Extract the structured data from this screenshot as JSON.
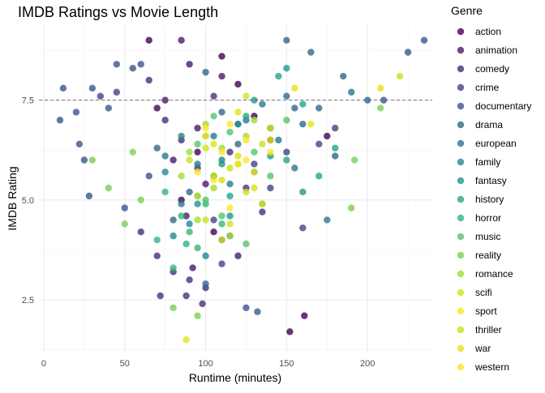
{
  "chart_data": {
    "type": "scatter",
    "title": "IMDB Ratings vs Movie Length",
    "xlabel": "Runtime (minutes)",
    "ylabel": "IMDB Rating",
    "xlim": [
      -3,
      240
    ],
    "ylim": [
      1.2,
      9.4
    ],
    "x_ticks": [
      0,
      50,
      100,
      150,
      200
    ],
    "y_ticks": [
      2.5,
      5.0,
      7.5
    ],
    "y_tick_labels": [
      "2.5",
      "5.0",
      "7.5"
    ],
    "reference_line": {
      "y": 7.5,
      "style": "dashed"
    },
    "legend": {
      "title": "Genre",
      "placement": "right",
      "items": [
        {
          "name": "action",
          "color": "#440154"
        },
        {
          "name": "animation",
          "color": "#481a6c"
        },
        {
          "name": "comedy",
          "color": "#472f7d"
        },
        {
          "name": "crime",
          "color": "#414487"
        },
        {
          "name": "documentary",
          "color": "#39568c"
        },
        {
          "name": "drama",
          "color": "#31688e"
        },
        {
          "name": "european",
          "color": "#2a788e"
        },
        {
          "name": "family",
          "color": "#23888e"
        },
        {
          "name": "fantasy",
          "color": "#1f988b"
        },
        {
          "name": "history",
          "color": "#22a884"
        },
        {
          "name": "horror",
          "color": "#35b779"
        },
        {
          "name": "music",
          "color": "#54c568"
        },
        {
          "name": "reality",
          "color": "#7ad151"
        },
        {
          "name": "romance",
          "color": "#a5db36"
        },
        {
          "name": "scifi",
          "color": "#d2e21b"
        },
        {
          "name": "sport",
          "color": "#fde725"
        },
        {
          "name": "thriller",
          "color": "#c9e020"
        },
        {
          "name": "war",
          "color": "#e3e418"
        },
        {
          "name": "western",
          "color": "#fde725"
        }
      ]
    },
    "series": [
      {
        "name": "action",
        "points": [
          [
            65,
            9.0
          ],
          [
            110,
            8.6
          ],
          [
            152,
            1.7
          ],
          [
            161,
            2.1
          ],
          [
            120,
            7.9
          ],
          [
            140,
            6.5
          ],
          [
            95,
            6.2
          ],
          [
            130,
            7.1
          ],
          [
            85,
            5.0
          ],
          [
            175,
            6.6
          ],
          [
            105,
            4.2
          ],
          [
            70,
            7.3
          ]
        ]
      },
      {
        "name": "animation",
        "points": [
          [
            85,
            9.0
          ],
          [
            90,
            8.4
          ],
          [
            110,
            8.1
          ],
          [
            75,
            7.5
          ],
          [
            95,
            6.8
          ],
          [
            80,
            6.0
          ],
          [
            100,
            5.4
          ],
          [
            88,
            4.6
          ],
          [
            120,
            3.6
          ],
          [
            92,
            3.3
          ]
        ]
      },
      {
        "name": "comedy",
        "points": [
          [
            60,
            4.2
          ],
          [
            70,
            3.6
          ],
          [
            80,
            3.2
          ],
          [
            90,
            3.0
          ],
          [
            100,
            2.8
          ],
          [
            110,
            4.0
          ],
          [
            95,
            5.8
          ],
          [
            85,
            6.5
          ],
          [
            75,
            7.0
          ],
          [
            105,
            7.6
          ],
          [
            115,
            6.2
          ],
          [
            125,
            5.3
          ],
          [
            135,
            4.7
          ],
          [
            65,
            8.0
          ],
          [
            88,
            2.6
          ],
          [
            98,
            2.4
          ],
          [
            72,
            2.6
          ]
        ]
      },
      {
        "name": "crime",
        "points": [
          [
            45,
            7.7
          ],
          [
            35,
            7.6
          ],
          [
            120,
            6.9
          ],
          [
            130,
            5.9
          ],
          [
            140,
            5.3
          ],
          [
            150,
            6.2
          ],
          [
            105,
            4.5
          ],
          [
            110,
            3.4
          ],
          [
            160,
            4.3
          ],
          [
            170,
            6.4
          ],
          [
            180,
            6.8
          ]
        ]
      },
      {
        "name": "documentary",
        "points": [
          [
            10,
            7.0
          ],
          [
            12,
            7.8
          ],
          [
            20,
            7.2
          ],
          [
            25,
            6.0
          ],
          [
            30,
            7.8
          ],
          [
            45,
            8.4
          ],
          [
            55,
            8.3
          ],
          [
            60,
            8.4
          ],
          [
            125,
            2.3
          ],
          [
            132,
            2.2
          ],
          [
            225,
            8.7
          ],
          [
            210,
            7.5
          ],
          [
            235,
            9.0
          ],
          [
            28,
            5.1
          ],
          [
            22,
            6.4
          ],
          [
            40,
            7.3
          ],
          [
            50,
            4.8
          ],
          [
            65,
            5.6
          ]
        ]
      },
      {
        "name": "drama",
        "points": [
          [
            100,
            8.2
          ],
          [
            110,
            7.2
          ],
          [
            120,
            6.4
          ],
          [
            130,
            5.7
          ],
          [
            140,
            6.8
          ],
          [
            150,
            7.6
          ],
          [
            160,
            6.9
          ],
          [
            170,
            7.3
          ],
          [
            180,
            6.1
          ],
          [
            90,
            5.2
          ],
          [
            80,
            4.5
          ],
          [
            70,
            6.3
          ],
          [
            200,
            7.5
          ],
          [
            150,
            9.0
          ],
          [
            115,
            4.1
          ],
          [
            100,
            2.9
          ],
          [
            155,
            7.3
          ],
          [
            165,
            8.7
          ],
          [
            185,
            8.1
          ]
        ]
      },
      {
        "name": "european",
        "points": [
          [
            75,
            6.1
          ],
          [
            95,
            5.9
          ],
          [
            105,
            6.6
          ],
          [
            125,
            7.0
          ],
          [
            135,
            7.4
          ],
          [
            145,
            6.5
          ],
          [
            155,
            5.8
          ],
          [
            115,
            5.4
          ],
          [
            85,
            4.9
          ],
          [
            175,
            4.5
          ],
          [
            190,
            7.7
          ]
        ]
      },
      {
        "name": "family",
        "points": [
          [
            85,
            6.6
          ],
          [
            95,
            5.1
          ],
          [
            105,
            5.6
          ],
          [
            80,
            4.1
          ],
          [
            100,
            3.6
          ],
          [
            90,
            4.4
          ],
          [
            110,
            6.0
          ],
          [
            75,
            5.7
          ]
        ]
      },
      {
        "name": "fantasy",
        "points": [
          [
            100,
            6.6
          ],
          [
            110,
            5.9
          ],
          [
            120,
            6.9
          ],
          [
            130,
            7.5
          ],
          [
            95,
            4.9
          ],
          [
            115,
            4.6
          ],
          [
            140,
            6.1
          ],
          [
            150,
            8.3
          ],
          [
            160,
            5.2
          ]
        ]
      },
      {
        "name": "history",
        "points": [
          [
            125,
            7.1
          ],
          [
            140,
            6.8
          ],
          [
            150,
            6.0
          ],
          [
            160,
            7.4
          ],
          [
            170,
            5.6
          ],
          [
            180,
            6.3
          ],
          [
            115,
            5.1
          ],
          [
            135,
            4.9
          ],
          [
            145,
            8.1
          ]
        ]
      },
      {
        "name": "horror",
        "points": [
          [
            75,
            5.2
          ],
          [
            85,
            4.6
          ],
          [
            90,
            4.2
          ],
          [
            95,
            3.8
          ],
          [
            80,
            3.3
          ],
          [
            100,
            4.9
          ],
          [
            105,
            5.6
          ],
          [
            70,
            4.0
          ],
          [
            88,
            3.9
          ],
          [
            110,
            4.4
          ]
        ]
      },
      {
        "name": "music",
        "points": [
          [
            95,
            6.4
          ],
          [
            105,
            7.1
          ],
          [
            115,
            6.7
          ],
          [
            120,
            5.9
          ],
          [
            130,
            6.2
          ],
          [
            140,
            5.6
          ],
          [
            100,
            5.0
          ],
          [
            110,
            4.6
          ],
          [
            125,
            3.9
          ],
          [
            150,
            7.0
          ]
        ]
      },
      {
        "name": "reality",
        "points": [
          [
            30,
            6.0
          ],
          [
            40,
            5.3
          ],
          [
            55,
            6.2
          ],
          [
            60,
            5.0
          ],
          [
            80,
            2.3
          ],
          [
            95,
            2.1
          ],
          [
            192,
            6.0
          ],
          [
            190,
            4.8
          ],
          [
            208,
            7.3
          ],
          [
            50,
            4.4
          ]
        ]
      },
      {
        "name": "romance",
        "points": [
          [
            90,
            6.2
          ],
          [
            100,
            6.9
          ],
          [
            110,
            6.3
          ],
          [
            120,
            5.9
          ],
          [
            105,
            5.3
          ],
          [
            95,
            4.5
          ],
          [
            115,
            4.1
          ],
          [
            125,
            6.6
          ],
          [
            130,
            7.0
          ],
          [
            85,
            5.6
          ]
        ]
      },
      {
        "name": "scifi",
        "points": [
          [
            100,
            6.3
          ],
          [
            110,
            5.5
          ],
          [
            120,
            6.1
          ],
          [
            130,
            5.3
          ],
          [
            115,
            4.4
          ],
          [
            140,
            6.8
          ],
          [
            125,
            7.6
          ],
          [
            135,
            4.9
          ]
        ]
      },
      {
        "name": "sport",
        "points": [
          [
            100,
            6.8
          ],
          [
            110,
            6.2
          ],
          [
            120,
            5.9
          ],
          [
            105,
            5.5
          ],
          [
            115,
            4.8
          ],
          [
            125,
            6.5
          ]
        ]
      },
      {
        "name": "thriller",
        "points": [
          [
            95,
            5.1
          ],
          [
            105,
            5.6
          ],
          [
            115,
            5.8
          ],
          [
            125,
            5.2
          ],
          [
            100,
            4.5
          ],
          [
            110,
            4.0
          ],
          [
            90,
            6.0
          ],
          [
            220,
            8.1
          ],
          [
            135,
            6.4
          ]
        ]
      },
      {
        "name": "war",
        "points": [
          [
            120,
            7.2
          ],
          [
            140,
            6.5
          ],
          [
            155,
            7.8
          ],
          [
            165,
            6.9
          ],
          [
            105,
            6.4
          ],
          [
            130,
            5.7
          ],
          [
            88,
            1.5
          ],
          [
            208,
            7.8
          ]
        ]
      },
      {
        "name": "western",
        "points": [
          [
            100,
            6.6
          ],
          [
            115,
            6.9
          ],
          [
            125,
            6.0
          ],
          [
            95,
            5.7
          ],
          [
            140,
            6.2
          ]
        ]
      }
    ]
  }
}
